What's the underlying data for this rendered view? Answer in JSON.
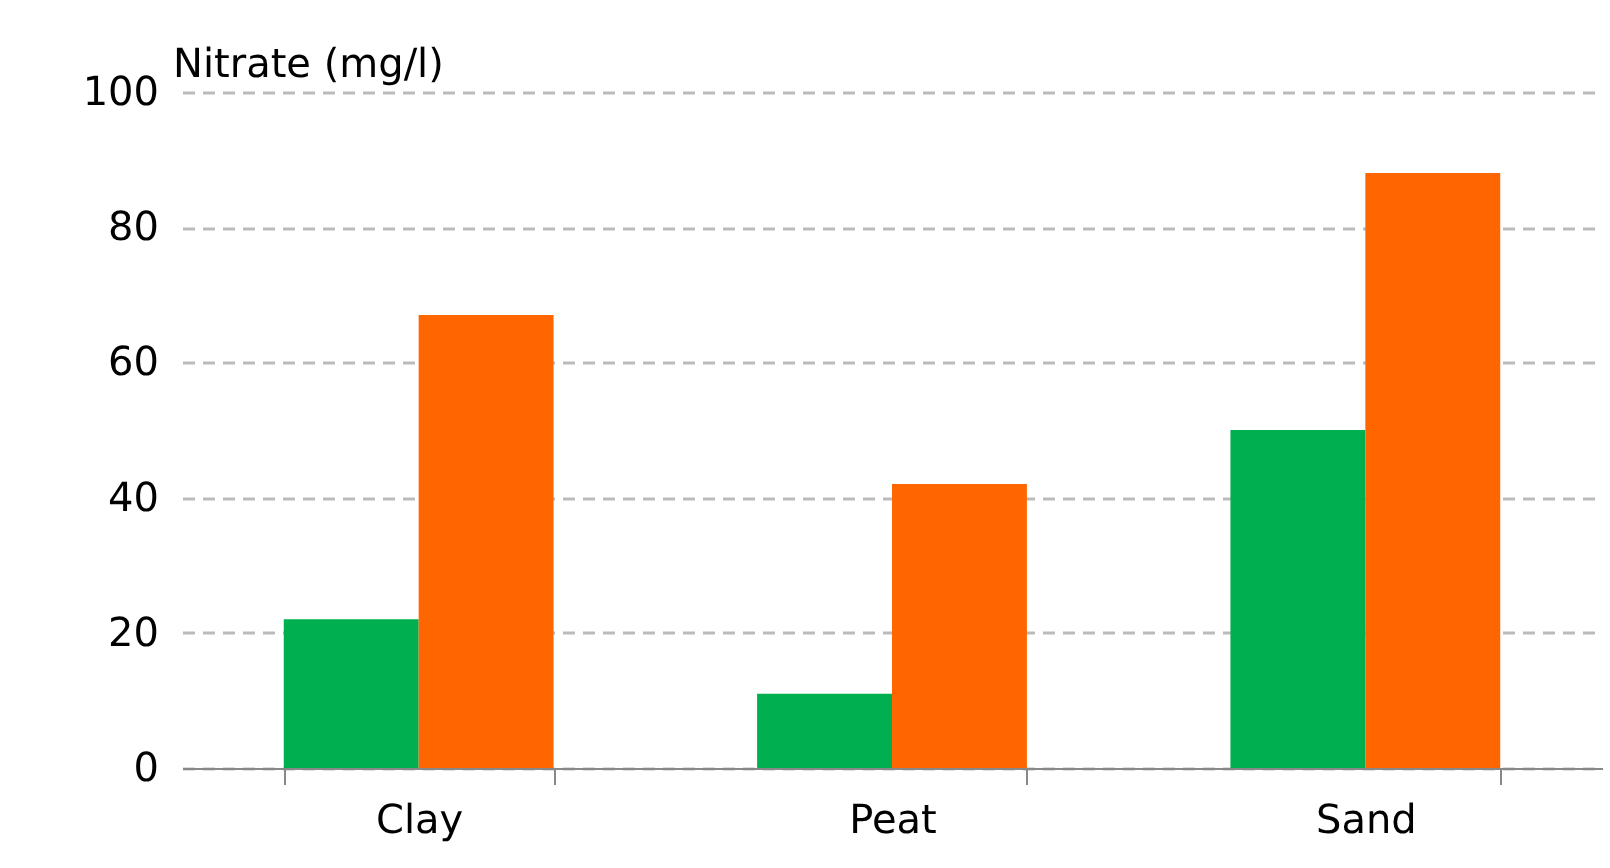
{
  "chart_data": {
    "type": "bar",
    "ylabel": "Nitrate (mg/l)",
    "categories": [
      "Clay",
      "Peat",
      "Sand"
    ],
    "series": [
      {
        "color": "#00b050",
        "values": [
          22,
          11,
          50
        ]
      },
      {
        "color": "#ff6600",
        "values": [
          67,
          42,
          88
        ]
      }
    ],
    "ylim": [
      0,
      100
    ],
    "yticks": [
      0,
      20,
      40,
      60,
      80,
      100
    ],
    "grid": "y",
    "legend": false
  }
}
